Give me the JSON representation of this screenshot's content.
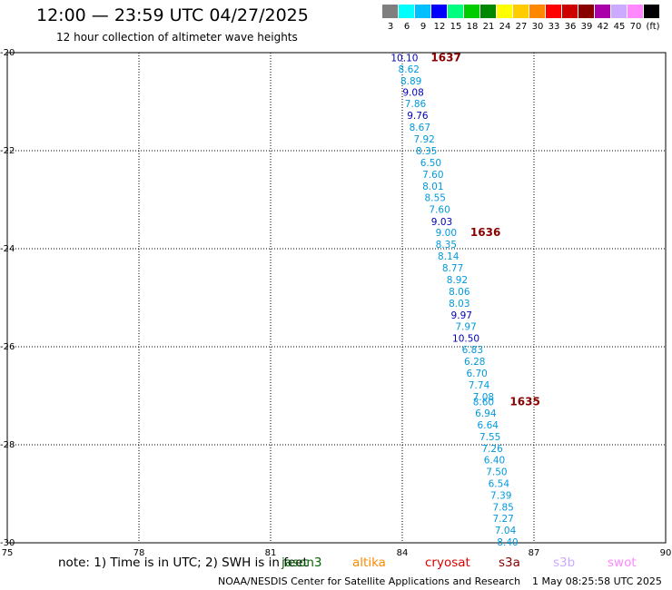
{
  "header": {
    "title": "12:00 — 23:59 UTC 04/27/2025",
    "subtitle": "12 hour collection of altimeter wave heights"
  },
  "legend": {
    "unit": "(ft)",
    "bins": [
      {
        "label": "3",
        "color": "#7f7f7f"
      },
      {
        "label": "6",
        "color": "#00ffff"
      },
      {
        "label": "9",
        "color": "#00bfff"
      },
      {
        "label": "12",
        "color": "#0000ff"
      },
      {
        "label": "15",
        "color": "#00ff7f"
      },
      {
        "label": "18",
        "color": "#00cc00"
      },
      {
        "label": "21",
        "color": "#008800"
      },
      {
        "label": "24",
        "color": "#ffff00"
      },
      {
        "label": "27",
        "color": "#ffcc00"
      },
      {
        "label": "30",
        "color": "#ff8800"
      },
      {
        "label": "33",
        "color": "#ff0000"
      },
      {
        "label": "36",
        "color": "#cc0000"
      },
      {
        "label": "39",
        "color": "#880000"
      },
      {
        "label": "42",
        "color": "#aa00aa"
      },
      {
        "label": "45",
        "color": "#ccaaff"
      },
      {
        "label": "70",
        "color": "#ff88ff"
      },
      {
        "label": "",
        "color": "#000000"
      }
    ]
  },
  "chart_data": {
    "type": "scatter",
    "xlim": [
      75,
      90
    ],
    "ylim": [
      -30,
      -20
    ],
    "xticks": [
      {
        "value": 75,
        "label": "75"
      },
      {
        "value": 78,
        "label": "78"
      },
      {
        "value": 81,
        "label": "81"
      },
      {
        "value": 84,
        "label": "84"
      },
      {
        "value": 87,
        "label": "87"
      },
      {
        "value": 90,
        "label": "90"
      }
    ],
    "yticks": [
      {
        "value": -20,
        "label": "-20"
      },
      {
        "value": -22,
        "label": "-22"
      },
      {
        "value": -24,
        "label": "-24"
      },
      {
        "value": -26,
        "label": "-26"
      },
      {
        "value": -28,
        "label": "-28"
      },
      {
        "value": -30,
        "label": "-30"
      }
    ],
    "grid": true,
    "points": [
      {
        "lon": 84.05,
        "lat": -20.1,
        "label": "10.10",
        "color": "#0000bb"
      },
      {
        "lon": 84.15,
        "lat": -20.33,
        "label": "8.62",
        "color": "#0099dd"
      },
      {
        "lon": 84.2,
        "lat": -20.57,
        "label": "8.89",
        "color": "#0099dd"
      },
      {
        "lon": 84.25,
        "lat": -20.81,
        "label": "9.08",
        "color": "#0000bb"
      },
      {
        "lon": 84.3,
        "lat": -21.04,
        "label": "7.86",
        "color": "#0099dd"
      },
      {
        "lon": 84.35,
        "lat": -21.28,
        "label": "9.76",
        "color": "#0000bb"
      },
      {
        "lon": 84.4,
        "lat": -21.52,
        "label": "8.67",
        "color": "#0099dd"
      },
      {
        "lon": 84.5,
        "lat": -21.76,
        "label": "7.92",
        "color": "#0099dd"
      },
      {
        "lon": 84.55,
        "lat": -22.0,
        "label": "8.35",
        "color": "#0099dd"
      },
      {
        "lon": 84.65,
        "lat": -22.24,
        "label": "6.50",
        "color": "#0099dd"
      },
      {
        "lon": 84.7,
        "lat": -22.48,
        "label": "7.60",
        "color": "#0099dd"
      },
      {
        "lon": 84.7,
        "lat": -22.72,
        "label": "8.01",
        "color": "#0099dd"
      },
      {
        "lon": 84.75,
        "lat": -22.95,
        "label": "8.55",
        "color": "#0099dd"
      },
      {
        "lon": 84.85,
        "lat": -23.19,
        "label": "7.60",
        "color": "#0099dd"
      },
      {
        "lon": 84.9,
        "lat": -23.44,
        "label": "9.03",
        "color": "#0000bb"
      },
      {
        "lon": 85.0,
        "lat": -23.67,
        "label": "9.00",
        "color": "#0099dd"
      },
      {
        "lon": 85.0,
        "lat": -23.91,
        "label": "8.35",
        "color": "#0099dd"
      },
      {
        "lon": 85.05,
        "lat": -24.15,
        "label": "8.14",
        "color": "#0099dd"
      },
      {
        "lon": 85.15,
        "lat": -24.39,
        "label": "8.77",
        "color": "#0099dd"
      },
      {
        "lon": 85.25,
        "lat": -24.63,
        "label": "8.92",
        "color": "#0099dd"
      },
      {
        "lon": 85.3,
        "lat": -24.87,
        "label": "8.06",
        "color": "#0099dd"
      },
      {
        "lon": 85.3,
        "lat": -25.11,
        "label": "8.03",
        "color": "#0099dd"
      },
      {
        "lon": 85.35,
        "lat": -25.35,
        "label": "9.97",
        "color": "#0000bb"
      },
      {
        "lon": 85.45,
        "lat": -25.58,
        "label": "7.97",
        "color": "#0099dd"
      },
      {
        "lon": 85.45,
        "lat": -25.82,
        "label": "10.50",
        "color": "#0000bb"
      },
      {
        "lon": 85.6,
        "lat": -26.06,
        "label": "6.83",
        "color": "#0099dd"
      },
      {
        "lon": 85.65,
        "lat": -26.3,
        "label": "6.28",
        "color": "#0099dd"
      },
      {
        "lon": 85.7,
        "lat": -26.54,
        "label": "6.70",
        "color": "#0099dd"
      },
      {
        "lon": 85.75,
        "lat": -26.78,
        "label": "7.74",
        "color": "#0099dd"
      },
      {
        "lon": 85.85,
        "lat": -27.02,
        "label": "7.08",
        "color": "#0099dd"
      },
      {
        "lon": 85.85,
        "lat": -27.12,
        "label": "8.60",
        "color": "#0099dd"
      },
      {
        "lon": 85.9,
        "lat": -27.35,
        "label": "6.94",
        "color": "#0099dd"
      },
      {
        "lon": 85.95,
        "lat": -27.59,
        "label": "6.64",
        "color": "#0099dd"
      },
      {
        "lon": 86.0,
        "lat": -27.83,
        "label": "7.55",
        "color": "#0099dd"
      },
      {
        "lon": 86.05,
        "lat": -28.07,
        "label": "7.26",
        "color": "#0099dd"
      },
      {
        "lon": 86.1,
        "lat": -28.31,
        "label": "6.40",
        "color": "#0099dd"
      },
      {
        "lon": 86.15,
        "lat": -28.55,
        "label": "7.50",
        "color": "#0099dd"
      },
      {
        "lon": 86.2,
        "lat": -28.79,
        "label": "6.54",
        "color": "#0099dd"
      },
      {
        "lon": 86.25,
        "lat": -29.03,
        "label": "7.39",
        "color": "#0099dd"
      },
      {
        "lon": 86.3,
        "lat": -29.27,
        "label": "7.85",
        "color": "#0099dd"
      },
      {
        "lon": 86.3,
        "lat": -29.5,
        "label": "7.27",
        "color": "#0099dd"
      },
      {
        "lon": 86.35,
        "lat": -29.74,
        "label": "7.04",
        "color": "#0099dd"
      },
      {
        "lon": 86.4,
        "lat": -29.98,
        "label": "8.40",
        "color": "#0099dd"
      }
    ],
    "annotations": [
      {
        "lon": 84.65,
        "lat": -20.1,
        "label": "1637",
        "color": "#880000"
      },
      {
        "lon": 85.55,
        "lat": -23.67,
        "label": "1636",
        "color": "#880000"
      },
      {
        "lon": 86.45,
        "lat": -27.12,
        "label": "1635",
        "color": "#880000"
      }
    ]
  },
  "footer": {
    "note": "note: 1) Time is in UTC; 2) SWH is in feet",
    "satellites": [
      {
        "name": "jason3",
        "color": "#006600"
      },
      {
        "name": "altika",
        "color": "#ff8800"
      },
      {
        "name": "cryosat",
        "color": "#dd0000"
      },
      {
        "name": "s3a",
        "color": "#880000"
      },
      {
        "name": "s3b",
        "color": "#ccaaff"
      },
      {
        "name": "swot",
        "color": "#ff88ff"
      }
    ],
    "org": "NOAA/NESDIS Center for Satellite Applications and Research",
    "timestamp": "1 May 08:25:58 UTC 2025"
  }
}
